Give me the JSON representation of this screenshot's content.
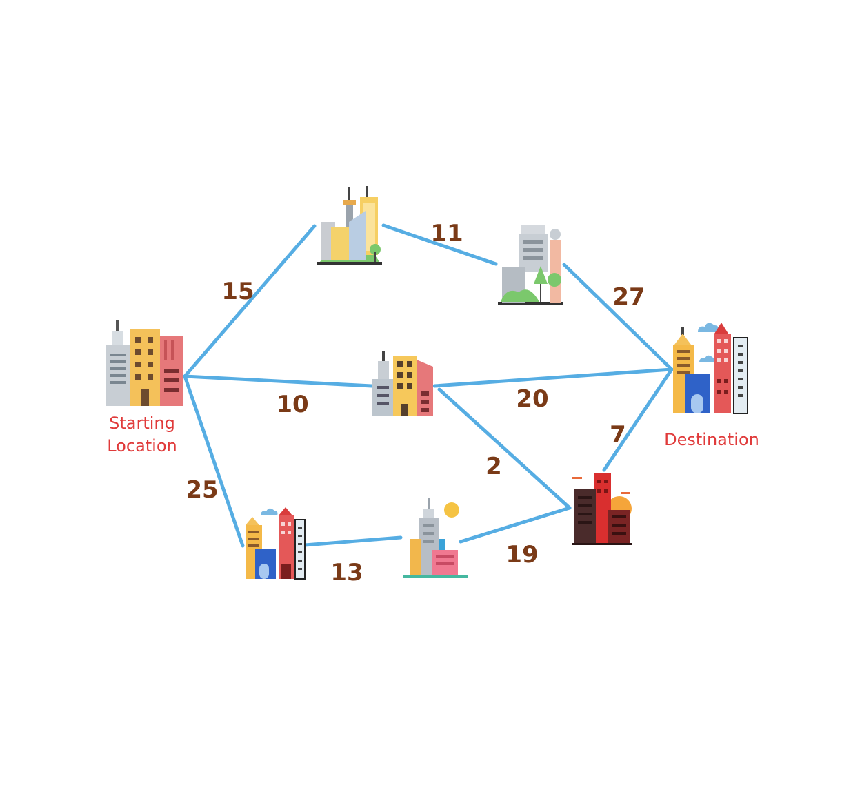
{
  "colors": {
    "edge": "#56ade3",
    "weight_text": "#7a3a17",
    "label_text": "#e03a3a"
  },
  "nodes": [
    {
      "id": "start",
      "icon": "city-skyline-icon",
      "label_lines": [
        "Starting",
        "Location"
      ]
    },
    {
      "id": "north",
      "icon": "city-towers-icon",
      "label_lines": []
    },
    {
      "id": "northeast",
      "icon": "city-park-icon",
      "label_lines": []
    },
    {
      "id": "center",
      "icon": "office-buildings-icon",
      "label_lines": []
    },
    {
      "id": "destination",
      "icon": "city-skyline-icon",
      "label_lines": [
        "Destination"
      ]
    },
    {
      "id": "southwest",
      "icon": "city-skyline-icon",
      "label_lines": []
    },
    {
      "id": "south",
      "icon": "skyscraper-sun-icon",
      "label_lines": []
    },
    {
      "id": "southeast",
      "icon": "city-sunset-icon",
      "label_lines": []
    }
  ],
  "edges": [
    {
      "from": "start",
      "to": "north",
      "weight": "15"
    },
    {
      "from": "north",
      "to": "northeast",
      "weight": "11"
    },
    {
      "from": "northeast",
      "to": "destination",
      "weight": "27"
    },
    {
      "from": "start",
      "to": "center",
      "weight": "10"
    },
    {
      "from": "center",
      "to": "destination",
      "weight": "20"
    },
    {
      "from": "center",
      "to": "southeast",
      "weight": "2"
    },
    {
      "from": "southeast",
      "to": "destination",
      "weight": "7"
    },
    {
      "from": "start",
      "to": "southwest",
      "weight": "25"
    },
    {
      "from": "southwest",
      "to": "south",
      "weight": "13"
    },
    {
      "from": "south",
      "to": "southeast",
      "weight": "19"
    }
  ]
}
